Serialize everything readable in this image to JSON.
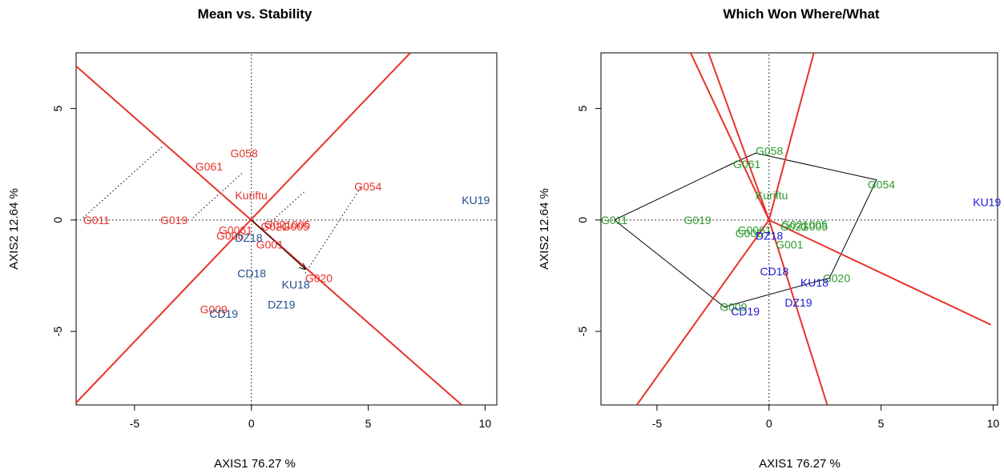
{
  "colors": {
    "red": "#e8322a",
    "blue": "#1f4e8c",
    "green": "#2e9a2e",
    "blue_bright": "#1a1ad6",
    "black": "#000000"
  },
  "chart_data": [
    {
      "type": "scatter",
      "subtype": "GGE biplot",
      "title": "Mean vs. Stability",
      "xlabel": "AXIS1 76.27 %",
      "ylabel": "AXIS2 12.64 %",
      "xlim": [
        -7.5,
        10.5
      ],
      "ylim": [
        -8.3,
        7.5
      ],
      "xticks": [
        -5,
        0,
        5,
        10
      ],
      "yticks": [
        -5,
        0,
        5
      ],
      "xtick_labels": [
        "-5",
        "0",
        "5",
        "10"
      ],
      "ytick_labels": [
        "-5",
        "0",
        "5"
      ],
      "reference_lines": [
        {
          "style": "dotted",
          "color": "black",
          "x1": -7.5,
          "y1": 0,
          "x2": 10.5,
          "y2": 0
        },
        {
          "style": "dotted",
          "color": "black",
          "x1": 0,
          "y1": -8.3,
          "x2": 0,
          "y2": 7.5
        }
      ],
      "lines": [
        {
          "style": "solid",
          "color": "red",
          "x1": -7.5,
          "y1": -8.2,
          "x2": 6.8,
          "y2": 7.5
        },
        {
          "style": "solid",
          "color": "red",
          "x1": -7.5,
          "y1": 6.9,
          "x2": 9.0,
          "y2": -8.3
        }
      ],
      "projections": [
        {
          "x1": -7.2,
          "y1": 0.1,
          "x2": -3.8,
          "y2": 3.3
        },
        {
          "x1": -2.5,
          "y1": 0.1,
          "x2": -0.4,
          "y2": 2.1
        },
        {
          "x1": 0.5,
          "y1": -0.4,
          "x2": 2.3,
          "y2": 1.3
        },
        {
          "x1": 2.3,
          "y1": -2.4,
          "x2": 4.7,
          "y2": 1.5
        }
      ],
      "arrow": {
        "x1": 0,
        "y1": 0,
        "x2": 2.3,
        "y2": -2.2
      },
      "genotypes": [
        {
          "label": "G058",
          "x": -0.9,
          "y": 3.0
        },
        {
          "label": "G061",
          "x": -2.4,
          "y": 2.4
        },
        {
          "label": "G054",
          "x": 4.4,
          "y": 1.5
        },
        {
          "label": "G011",
          "x": -7.2,
          "y": 0.0
        },
        {
          "label": "G019",
          "x": -3.9,
          "y": 0.0
        },
        {
          "label": "G006",
          "x": -1.5,
          "y": -0.7
        },
        {
          "label": "G021",
          "x": 0.4,
          "y": -0.3
        },
        {
          "label": "G005",
          "x": 1.3,
          "y": -0.3
        },
        {
          "label": "G001",
          "x": 0.2,
          "y": -1.1
        },
        {
          "label": "G020",
          "x": 2.3,
          "y": -2.6
        },
        {
          "label": "G009",
          "x": -2.2,
          "y": -4.0
        }
      ],
      "genotype_overlap_label": "G0061",
      "genotype_overlap_label2": "G021005",
      "environments": [
        {
          "label": "KU19",
          "x": 9.0,
          "y": 0.9
        },
        {
          "label": "DZ18",
          "x": -0.7,
          "y": -0.8
        },
        {
          "label": "CD18",
          "x": -0.6,
          "y": -2.4
        },
        {
          "label": "KU18",
          "x": 1.3,
          "y": -2.9
        },
        {
          "label": "DZ19",
          "x": 0.7,
          "y": -3.8
        },
        {
          "label": "CD19",
          "x": -1.8,
          "y": -4.2
        }
      ],
      "mega_env_label": {
        "label": "Kuriftu",
        "x": -0.7,
        "y": 1.1
      }
    },
    {
      "type": "scatter",
      "subtype": "GGE biplot polygon",
      "title": "Which Won Where/What",
      "xlabel": "AXIS1 76.27 %",
      "ylabel": "AXIS2 12.64 %",
      "xlim": [
        -7.5,
        10.2
      ],
      "ylim": [
        -8.3,
        7.5
      ],
      "xticks": [
        -5,
        0,
        5,
        10
      ],
      "yticks": [
        -5,
        0,
        5
      ],
      "xtick_labels": [
        "-5",
        "0",
        "5",
        "10"
      ],
      "ytick_labels": [
        "-5",
        "0",
        "5"
      ],
      "reference_lines": [
        {
          "style": "dotted",
          "color": "black",
          "x1": -7.5,
          "y1": 0,
          "x2": 10.2,
          "y2": 0
        },
        {
          "style": "dotted",
          "color": "black",
          "x1": 0,
          "y1": -8.3,
          "x2": 0,
          "y2": 7.5
        }
      ],
      "polygon": [
        [
          -6.9,
          0.0
        ],
        [
          -1.7,
          2.5
        ],
        [
          -0.6,
          3.0
        ],
        [
          4.8,
          1.8
        ],
        [
          2.7,
          -2.6
        ],
        [
          -2.0,
          -3.9
        ]
      ],
      "rays": [
        {
          "x1": 0,
          "y1": 0,
          "x2": -3.5,
          "y2": 7.5
        },
        {
          "x1": 0,
          "y1": 0,
          "x2": -2.7,
          "y2": 7.5
        },
        {
          "x1": 0,
          "y1": 0,
          "x2": 2.0,
          "y2": 7.5
        },
        {
          "x1": 0,
          "y1": 0,
          "x2": 9.9,
          "y2": -4.7
        },
        {
          "x1": 0,
          "y1": 0,
          "x2": 2.6,
          "y2": -8.3
        },
        {
          "x1": 0,
          "y1": 0,
          "x2": -5.9,
          "y2": -8.3
        }
      ],
      "genotypes": [
        {
          "label": "G058",
          "x": -0.6,
          "y": 3.1
        },
        {
          "label": "G061",
          "x": -1.6,
          "y": 2.5
        },
        {
          "label": "G054",
          "x": 4.4,
          "y": 1.6
        },
        {
          "label": "G011",
          "x": -7.5,
          "y": 0.0
        },
        {
          "label": "G019",
          "x": -3.8,
          "y": 0.0
        },
        {
          "label": "G006",
          "x": -1.5,
          "y": -0.6
        },
        {
          "label": "G021",
          "x": 0.5,
          "y": -0.3
        },
        {
          "label": "G005",
          "x": 1.4,
          "y": -0.3
        },
        {
          "label": "G001",
          "x": 0.3,
          "y": -1.1
        },
        {
          "label": "G020",
          "x": 2.4,
          "y": -2.6
        },
        {
          "label": "G009",
          "x": -2.2,
          "y": -3.9
        }
      ],
      "genotype_overlap_label": "G0061",
      "genotype_overlap_label2": "G021005",
      "environments": [
        {
          "label": "KU19",
          "x": 9.1,
          "y": 0.8
        },
        {
          "label": "DZ18",
          "x": -0.6,
          "y": -0.7
        },
        {
          "label": "CD18",
          "x": -0.4,
          "y": -2.3
        },
        {
          "label": "KU18",
          "x": 1.4,
          "y": -2.8
        },
        {
          "label": "DZ19",
          "x": 0.7,
          "y": -3.7
        },
        {
          "label": "CD19",
          "x": -1.7,
          "y": -4.1
        }
      ],
      "mega_env_label": {
        "label": "Kuriftu",
        "x": -0.6,
        "y": 1.1
      }
    }
  ]
}
